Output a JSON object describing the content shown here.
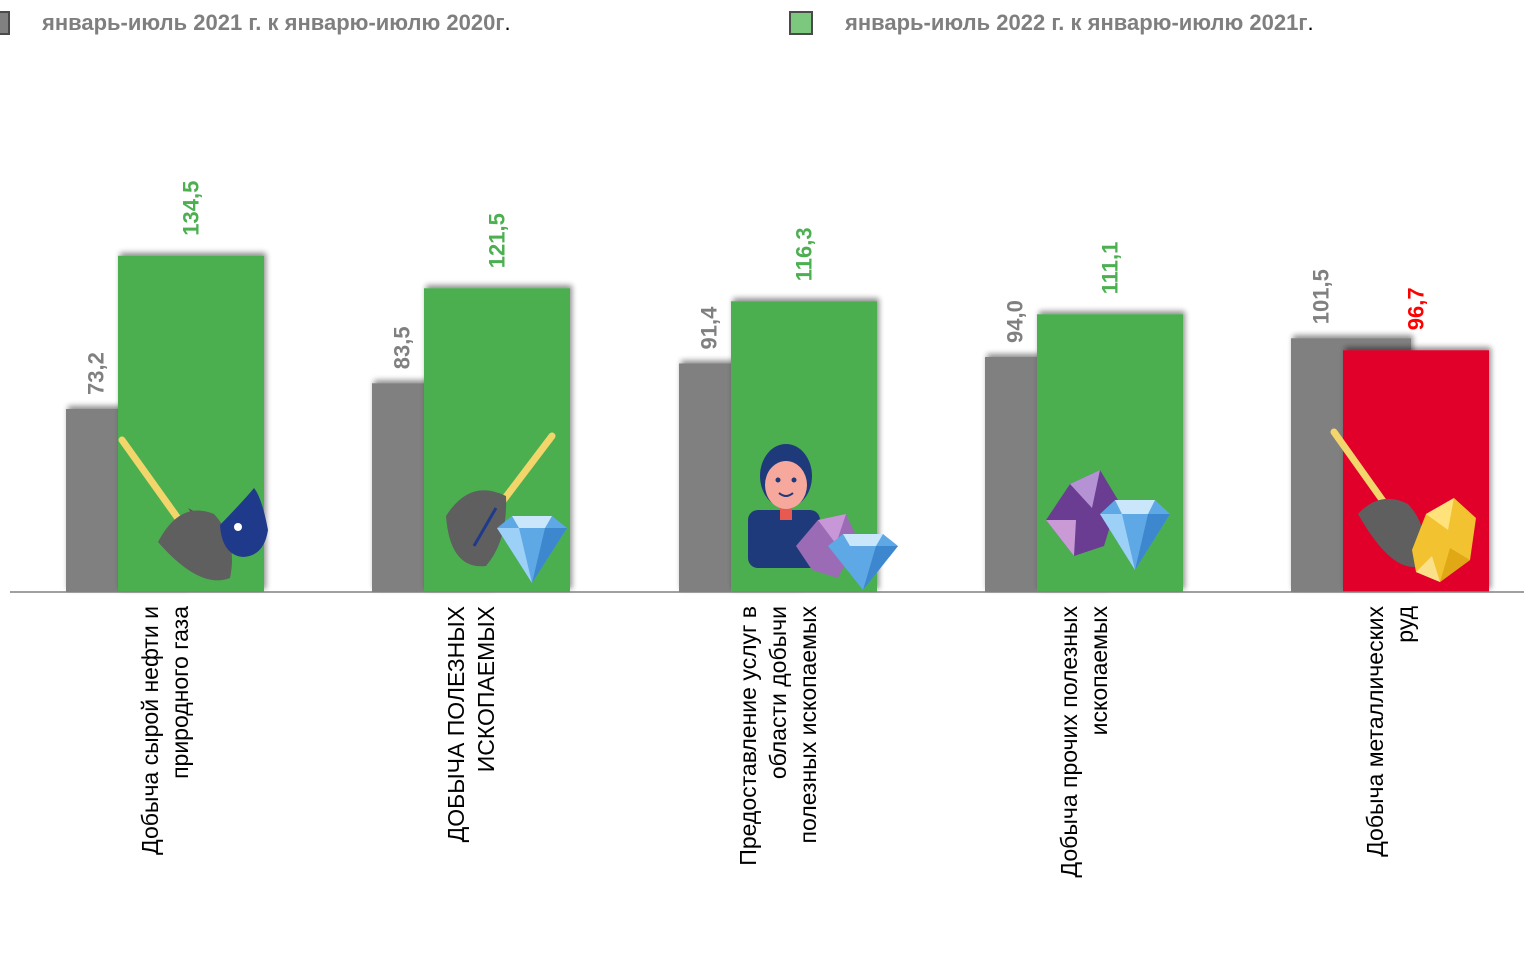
{
  "legend": [
    {
      "label": "январь-июль 2021 г. к январю-июлю 2020г",
      "suffix": ".",
      "color": "#808080"
    },
    {
      "label": "январь-июль 2022 г. к январю-июлю 2021г",
      "suffix": ".",
      "color": "#7dc87f"
    }
  ],
  "colors": {
    "grey_bar": "#808080",
    "green_bar": "#4caf50",
    "red_bar": "#e0002b",
    "grey_text": "#808080",
    "green_text": "#4caf50",
    "red_text": "#ff0000",
    "axis": "#808080"
  },
  "chart_data": {
    "type": "bar",
    "categories": [
      [
        "Добыча сырой нефти и",
        "природного газа"
      ],
      [
        "ДОБЫЧА ПОЛЕЗНЫХ",
        "ИСКОПАЕМЫХ"
      ],
      [
        "Предоставление услуг в",
        "области добычи",
        "полезных ископаемых"
      ],
      [
        "Добыча прочих полезных",
        "ископаемых"
      ],
      [
        "Добыча металлических",
        "руд"
      ]
    ],
    "series": [
      {
        "name": "январь-июль 2021 г. к январю-июлю 2020г.",
        "values": [
          73.2,
          83.5,
          91.4,
          94.0,
          101.5
        ],
        "labels": [
          "73,2",
          "83,5",
          "91,4",
          "94,0",
          "101,5"
        ]
      },
      {
        "name": "январь-июль 2022 г. к январю-июлю 2021г.",
        "values": [
          134.5,
          121.5,
          116.3,
          111.1,
          96.7
        ],
        "labels": [
          "134,5",
          "121,5",
          "116,3",
          "111,1",
          "96,7"
        ]
      }
    ],
    "highlight_below_100": "red",
    "icons": [
      "shovel-oil-drop-icon",
      "shovel-diamond-icon",
      "miner-gems-icon",
      "gems-diamond-icon",
      "shovel-gold-ore-icon"
    ]
  }
}
